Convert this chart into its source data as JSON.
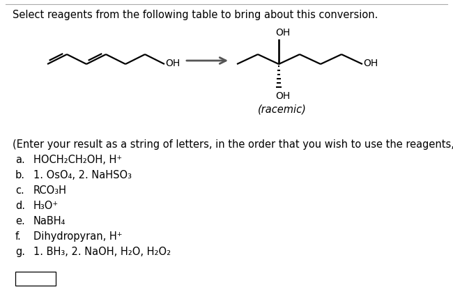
{
  "title": "Select reagents from the following table to bring about this conversion.",
  "instruction": "(Enter your result as a string of letters, in the order that you wish to use the reagents, i.e. ade.)",
  "reagent_letters": [
    "a.",
    "b.",
    "c.",
    "d.",
    "e.",
    "f.",
    "g."
  ],
  "reagent_texts": [
    "HOCH₂CH₂OH, H⁺",
    "1. OsO₄, 2. NaHSO₃",
    "RCO₃H",
    "H₃O⁺",
    "NaBH₄",
    "Dihydropyran, H⁺",
    "1. BH₃, 2. NaOH, H₂O, H₂O₂"
  ],
  "background_color": "#ffffff",
  "text_color": "#000000",
  "font_size_title": 10.5,
  "font_size_reagents": 10.5,
  "font_size_instruction": 10.5,
  "font_size_mol": 10.0
}
